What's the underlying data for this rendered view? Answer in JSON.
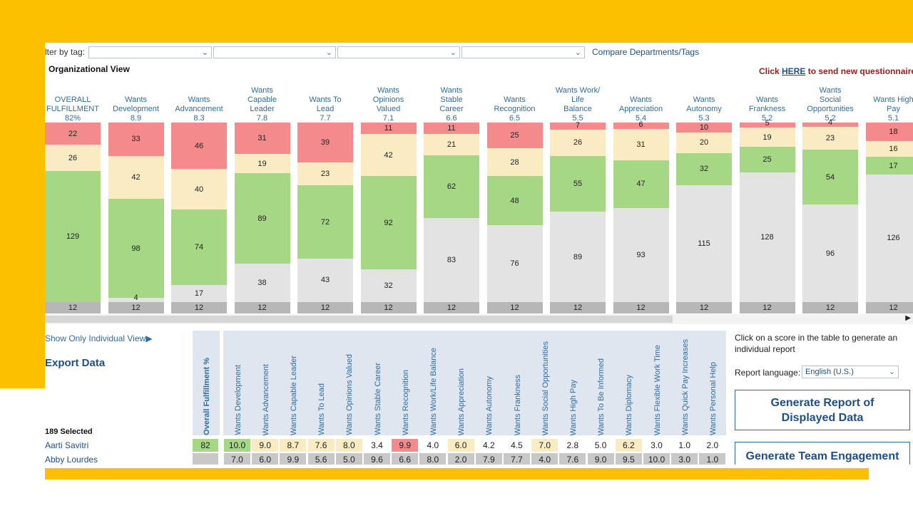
{
  "filter": {
    "label": "lter by tag:",
    "dropdowns": [
      "",
      "",
      "",
      ""
    ],
    "compare_link": "Compare Departments/Tags"
  },
  "org_view_title": "Organizational View",
  "notice": {
    "prefix": "Click ",
    "link": "HERE",
    "suffix": " to send new questionnaires r"
  },
  "colors": {
    "red": "#F48A8C",
    "yellow": "#FBEBC2",
    "green": "#A5D785",
    "gray": "#E3E3E3",
    "count": "#B7B7B7",
    "accent": "#2e6da4",
    "frame": "#FDC000"
  },
  "columns": [
    {
      "title": [
        "OVERALL",
        "FULFILLMENT"
      ],
      "score": "82%",
      "values": [
        22,
        26,
        129,
        null
      ],
      "count": 12
    },
    {
      "title": [
        "Wants",
        "Development"
      ],
      "score": "8.9",
      "values": [
        33,
        42,
        98,
        4
      ],
      "count": 12
    },
    {
      "title": [
        "Wants",
        "Advancement"
      ],
      "score": "8.3",
      "values": [
        46,
        40,
        74,
        17
      ],
      "count": 12
    },
    {
      "title": [
        "Wants",
        "Capable",
        "Leader"
      ],
      "score": "7.8",
      "values": [
        31,
        19,
        89,
        38
      ],
      "count": 12
    },
    {
      "title": [
        "Wants To",
        "Lead"
      ],
      "score": "7.7",
      "values": [
        39,
        23,
        72,
        43
      ],
      "count": 12
    },
    {
      "title": [
        "Wants",
        "Opinions",
        "Valued"
      ],
      "score": "7.1",
      "values": [
        11,
        42,
        92,
        32
      ],
      "count": 12
    },
    {
      "title": [
        "Wants",
        "Stable",
        "Career"
      ],
      "score": "6.6",
      "values": [
        11,
        21,
        62,
        83
      ],
      "count": 12
    },
    {
      "title": [
        "Wants",
        "Recognition"
      ],
      "score": "6.5",
      "values": [
        25,
        28,
        48,
        76
      ],
      "count": 12
    },
    {
      "title": [
        "Wants Work/",
        "Life",
        "Balance"
      ],
      "score": "5.5",
      "values": [
        7,
        26,
        55,
        89
      ],
      "count": 12
    },
    {
      "title": [
        "Wants",
        "Appreciation"
      ],
      "score": "5.4",
      "values": [
        6,
        31,
        47,
        93
      ],
      "count": 12
    },
    {
      "title": [
        "Wants",
        "Autonomy"
      ],
      "score": "5.3",
      "values": [
        10,
        20,
        32,
        115
      ],
      "count": 12
    },
    {
      "title": [
        "Wants",
        "Frankness"
      ],
      "score": "5.2",
      "values": [
        5,
        19,
        25,
        128
      ],
      "count": 12
    },
    {
      "title": [
        "Wants",
        "Social",
        "Opportunities"
      ],
      "score": "5.2",
      "values": [
        4,
        23,
        54,
        96
      ],
      "count": 12
    },
    {
      "title": [
        "Wants High",
        "Pay"
      ],
      "score": "5.1",
      "values": [
        18,
        16,
        17,
        126
      ],
      "count": 12
    }
  ],
  "bottom": {
    "individual_view": "Show Only Individual View▶",
    "export": "Export Data",
    "selected": "189 Selected",
    "overall_header": "Overall Fulfillment %",
    "headers": [
      "Wants Development",
      "Wants Advancement",
      "Wants Capable Leader",
      "Wants To Lead",
      "Wants Opinions Valued",
      "Wants Stable Career",
      "Wants Recognition",
      "Wants Work/Life Balance",
      "Wants Appreciation",
      "Wants Autonomy",
      "Wants Frankness",
      "Wants Social Opportunities",
      "Wants High Pay",
      "Wants To Be Informed",
      "Wants Diplomacy",
      "Wants Flexible Work Time",
      "Wants Quick Pay Increases",
      "Wants Personal Help"
    ],
    "rows": [
      {
        "name": "Aarti Savitri",
        "overall": "82",
        "scores": [
          "10.0",
          "9.0",
          "8.7",
          "7.6",
          "8.0",
          "3.4",
          "9.9",
          "4.0",
          "6.0",
          "4.2",
          "4.5",
          "7.0",
          "2.8",
          "5.0",
          "6.2",
          "3.0",
          "1.0",
          "2.0"
        ],
        "tones": [
          "g",
          "y",
          "y",
          "y",
          "y",
          "w",
          "r",
          "w",
          "y",
          "w",
          "w",
          "y",
          "w",
          "w",
          "y",
          "w",
          "w",
          "w"
        ]
      },
      {
        "name": "Abby Lourdes",
        "overall": "",
        "scores": [
          "7.0",
          "6.0",
          "9.9",
          "5.6",
          "5.0",
          "9.6",
          "6.6",
          "8.0",
          "2.0",
          "7.9",
          "7.7",
          "4.0",
          "7.6",
          "9.0",
          "9.5",
          "10.0",
          "3.0",
          "1.0"
        ],
        "tones": [
          "d",
          "d",
          "d",
          "d",
          "d",
          "d",
          "d",
          "d",
          "d",
          "d",
          "d",
          "d",
          "d",
          "d",
          "d",
          "d",
          "d",
          "d"
        ]
      }
    ]
  },
  "right_panel": {
    "hint": "Click on a score in the table to generate an individual report",
    "language_label": "Report language:",
    "language_value": "English (U.S.)",
    "report_button": "Generate Report of Displayed Data",
    "team_button": "Generate Team Engagement"
  }
}
